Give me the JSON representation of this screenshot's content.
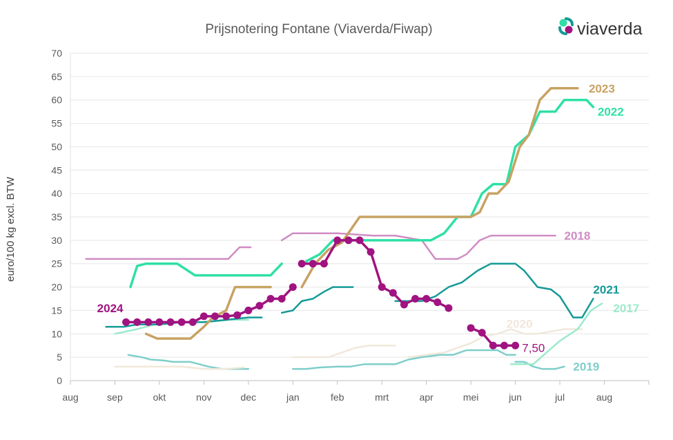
{
  "chart_data": {
    "type": "line",
    "title": "Prijsnotering Fontane (Viaverda/Fiwap)",
    "brand": "viaverda",
    "ylabel": "euro/100 kg excl. BTW",
    "ylim": [
      0,
      70
    ],
    "yticks": [
      0,
      5,
      10,
      15,
      20,
      25,
      30,
      35,
      40,
      45,
      50,
      55,
      60,
      65,
      70
    ],
    "xlim": [
      0,
      13
    ],
    "xticks": [
      "aug",
      "sep",
      "okt",
      "nov",
      "dec",
      "jan",
      "feb",
      "mrt",
      "apr",
      "mei",
      "jun",
      "jul",
      "aug"
    ],
    "grid": true,
    "series": [
      {
        "name": "2019",
        "color": "#7ececa",
        "width": 2.5,
        "segments": [
          [
            [
              1.3,
              5.5
            ],
            [
              1.6,
              5.0
            ],
            [
              1.8,
              4.5
            ],
            [
              2.1,
              4.3
            ],
            [
              2.3,
              4.0
            ],
            [
              2.7,
              4.0
            ],
            [
              2.9,
              3.5
            ],
            [
              3.1,
              3.0
            ],
            [
              3.4,
              2.5
            ],
            [
              4.0,
              2.5
            ]
          ],
          [
            [
              5.0,
              2.5
            ],
            [
              5.3,
              2.5
            ],
            [
              5.6,
              2.8
            ],
            [
              6.0,
              3.0
            ],
            [
              6.3,
              3.0
            ],
            [
              6.6,
              3.5
            ],
            [
              7.0,
              3.5
            ],
            [
              7.3,
              3.5
            ],
            [
              7.6,
              4.5
            ],
            [
              7.9,
              5.0
            ],
            [
              8.3,
              5.5
            ],
            [
              8.6,
              5.5
            ],
            [
              8.9,
              6.5
            ],
            [
              9.2,
              6.5
            ],
            [
              9.6,
              6.5
            ],
            [
              9.8,
              5.5
            ],
            [
              10.0,
              5.5
            ]
          ],
          [
            [
              10.0,
              4.0
            ],
            [
              10.2,
              4.0
            ],
            [
              10.4,
              3.0
            ],
            [
              10.6,
              2.5
            ],
            [
              10.9,
              2.5
            ],
            [
              11.1,
              3.0
            ]
          ]
        ],
        "label": "2019",
        "label_at": [
          11.3,
          3.0
        ]
      },
      {
        "name": "2020",
        "color": "#f0e8da",
        "width": 2.5,
        "segments": [
          [
            [
              1.0,
              3.0
            ],
            [
              1.5,
              3.0
            ],
            [
              2.0,
              3.0
            ],
            [
              2.5,
              3.0
            ],
            [
              3.0,
              2.5
            ],
            [
              3.5,
              2.5
            ],
            [
              3.9,
              2.8
            ]
          ],
          [
            [
              5.0,
              5.0
            ],
            [
              5.5,
              5.0
            ],
            [
              5.8,
              5.0
            ],
            [
              6.1,
              6.0
            ],
            [
              6.4,
              7.0
            ],
            [
              6.7,
              7.5
            ],
            [
              7.0,
              7.5
            ],
            [
              7.3,
              7.5
            ]
          ],
          [
            [
              7.6,
              5.0
            ],
            [
              8.0,
              5.5
            ],
            [
              8.4,
              6.0
            ],
            [
              8.7,
              7.0
            ],
            [
              9.0,
              8.0
            ],
            [
              9.3,
              9.5
            ],
            [
              9.6,
              10.0
            ],
            [
              9.9,
              11.0
            ],
            [
              10.2,
              10.0
            ],
            [
              10.5,
              10.0
            ],
            [
              10.8,
              10.5
            ],
            [
              11.1,
              11.0
            ],
            [
              11.5,
              11.0
            ]
          ]
        ],
        "label": "2020",
        "label_at": [
          9.8,
          12.2
        ]
      },
      {
        "name": "2018",
        "color": "#d08cc4",
        "width": 2.5,
        "segments": [
          [
            [
              0.35,
              26.0
            ],
            [
              3.55,
              26.0
            ],
            [
              3.8,
              28.5
            ],
            [
              4.05,
              28.5
            ]
          ],
          [
            [
              4.75,
              30.0
            ],
            [
              5.0,
              31.5
            ],
            [
              6.0,
              31.5
            ],
            [
              6.8,
              31.0
            ],
            [
              7.3,
              31.0
            ],
            [
              7.9,
              30.0
            ],
            [
              8.2,
              26.0
            ],
            [
              8.7,
              26.0
            ],
            [
              8.9,
              27.0
            ],
            [
              9.2,
              30.0
            ],
            [
              9.45,
              31.0
            ],
            [
              10.3,
              31.0
            ],
            [
              10.9,
              31.0
            ]
          ]
        ],
        "label": "2018",
        "label_at": [
          11.1,
          31.0
        ]
      },
      {
        "name": "2017",
        "color": "#9ceacc",
        "width": 2.5,
        "segments": [
          [
            [
              1.0,
              10.0
            ],
            [
              1.5,
              11.0
            ],
            [
              1.9,
              12.0
            ],
            [
              2.4,
              12.5
            ],
            [
              3.0,
              12.5
            ],
            [
              3.6,
              13.0
            ],
            [
              4.0,
              13.0
            ]
          ],
          [
            [
              9.9,
              3.5
            ],
            [
              10.4,
              3.5
            ],
            [
              10.7,
              6.0
            ],
            [
              11.0,
              8.5
            ],
            [
              11.4,
              11.0
            ],
            [
              11.7,
              15.0
            ],
            [
              11.95,
              16.5
            ]
          ]
        ],
        "label": "2017",
        "label_at": [
          12.2,
          15.5
        ]
      },
      {
        "name": "2021",
        "color": "#149a96",
        "width": 2.5,
        "segments": [
          [
            [
              0.8,
              11.5
            ],
            [
              1.2,
              11.5
            ],
            [
              1.5,
              12.0
            ],
            [
              2.0,
              12.0
            ],
            [
              2.5,
              12.5
            ],
            [
              3.0,
              12.5
            ],
            [
              3.5,
              13.0
            ],
            [
              4.0,
              13.5
            ],
            [
              4.3,
              13.5
            ]
          ],
          [
            [
              4.75,
              14.5
            ],
            [
              5.0,
              15.0
            ],
            [
              5.2,
              17.0
            ],
            [
              5.45,
              17.5
            ],
            [
              5.7,
              19.0
            ],
            [
              5.9,
              20.0
            ],
            [
              6.35,
              20.0
            ]
          ],
          [
            [
              7.3,
              17.0
            ],
            [
              7.9,
              17.0
            ],
            [
              8.2,
              18.0
            ],
            [
              8.5,
              20.0
            ],
            [
              8.8,
              21.0
            ],
            [
              9.15,
              23.5
            ],
            [
              9.45,
              25.0
            ],
            [
              10.0,
              25.0
            ],
            [
              10.2,
              23.5
            ],
            [
              10.5,
              20.0
            ],
            [
              10.8,
              19.5
            ],
            [
              11.0,
              18.0
            ],
            [
              11.3,
              13.5
            ],
            [
              11.5,
              13.5
            ],
            [
              11.75,
              17.5
            ]
          ]
        ],
        "label": "2021",
        "label_at": [
          11.75,
          19.5
        ]
      },
      {
        "name": "2022",
        "color": "#2ee0a6",
        "width": 3.5,
        "segments": [
          [
            [
              1.35,
              20.0
            ],
            [
              1.5,
              24.5
            ],
            [
              1.7,
              25.0
            ],
            [
              2.4,
              25.0
            ],
            [
              2.8,
              22.5
            ],
            [
              3.2,
              22.5
            ],
            [
              4.1,
              22.5
            ],
            [
              4.5,
              22.5
            ],
            [
              4.75,
              25.0
            ]
          ],
          [
            [
              5.3,
              25.5
            ],
            [
              5.6,
              27.0
            ],
            [
              5.9,
              30.0
            ],
            [
              7.5,
              30.0
            ],
            [
              8.1,
              30.0
            ],
            [
              8.4,
              31.5
            ],
            [
              8.7,
              35.0
            ],
            [
              9.0,
              35.0
            ],
            [
              9.25,
              40.0
            ],
            [
              9.5,
              42.0
            ],
            [
              9.8,
              42.0
            ],
            [
              10.0,
              50.0
            ],
            [
              10.3,
              52.5
            ],
            [
              10.55,
              57.5
            ],
            [
              10.9,
              57.5
            ],
            [
              11.1,
              60.0
            ],
            [
              11.6,
              60.0
            ],
            [
              11.75,
              58.5
            ]
          ]
        ],
        "label": "2022",
        "label_at": [
          11.85,
          57.5
        ]
      },
      {
        "name": "2023",
        "color": "#c8a262",
        "width": 3.5,
        "segments": [
          [
            [
              1.7,
              10.0
            ],
            [
              1.95,
              9.0
            ],
            [
              2.3,
              9.0
            ],
            [
              2.7,
              9.0
            ],
            [
              3.0,
              11.5
            ],
            [
              3.2,
              13.5
            ],
            [
              3.5,
              15.0
            ],
            [
              3.7,
              20.0
            ],
            [
              4.1,
              20.0
            ],
            [
              4.5,
              20.0
            ]
          ],
          [
            [
              5.2,
              20.0
            ],
            [
              5.5,
              25.0
            ],
            [
              5.8,
              28.0
            ],
            [
              6.1,
              29.5
            ],
            [
              6.5,
              35.0
            ],
            [
              8.5,
              35.0
            ],
            [
              9.0,
              35.0
            ],
            [
              9.2,
              36.0
            ],
            [
              9.4,
              40.0
            ],
            [
              9.6,
              40.0
            ],
            [
              9.85,
              42.5
            ],
            [
              10.1,
              50.0
            ],
            [
              10.3,
              52.5
            ],
            [
              10.55,
              60.0
            ],
            [
              10.8,
              62.5
            ],
            [
              11.1,
              62.5
            ],
            [
              11.4,
              62.5
            ]
          ]
        ],
        "label": "2023",
        "label_at": [
          11.65,
          62.5
        ]
      },
      {
        "name": "2024",
        "color": "#a01380",
        "width": 3.5,
        "markers": true,
        "segments": [
          [
            [
              1.25,
              12.5
            ],
            [
              1.5,
              12.5
            ],
            [
              1.75,
              12.5
            ],
            [
              2.0,
              12.5
            ],
            [
              2.25,
              12.5
            ],
            [
              2.5,
              12.5
            ],
            [
              2.75,
              12.5
            ],
            [
              3.0,
              13.75
            ],
            [
              3.25,
              13.75
            ],
            [
              3.5,
              13.75
            ],
            [
              3.75,
              14.0
            ],
            [
              4.0,
              15.0
            ],
            [
              4.25,
              16.0
            ],
            [
              4.5,
              17.5
            ],
            [
              4.75,
              17.5
            ],
            [
              5.0,
              20.0
            ]
          ],
          [
            [
              5.2,
              25.0
            ],
            [
              5.45,
              25.0
            ],
            [
              5.7,
              25.0
            ],
            [
              6.0,
              30.0
            ],
            [
              6.25,
              30.0
            ],
            [
              6.5,
              30.0
            ],
            [
              6.75,
              27.5
            ],
            [
              7.0,
              20.0
            ],
            [
              7.25,
              18.75
            ],
            [
              7.5,
              16.25
            ],
            [
              7.75,
              17.5
            ],
            [
              8.0,
              17.5
            ],
            [
              8.25,
              16.75
            ],
            [
              8.5,
              15.5
            ]
          ],
          [
            [
              9.0,
              11.25
            ],
            [
              9.25,
              10.25
            ],
            [
              9.5,
              7.5
            ],
            [
              9.75,
              7.5
            ],
            [
              10.0,
              7.5
            ]
          ]
        ],
        "label": "2024",
        "label_at": [
          0.6,
          15.5
        ],
        "last_value_label": "7,50",
        "last_value_at": [
          10.15,
          7.0
        ]
      }
    ]
  }
}
